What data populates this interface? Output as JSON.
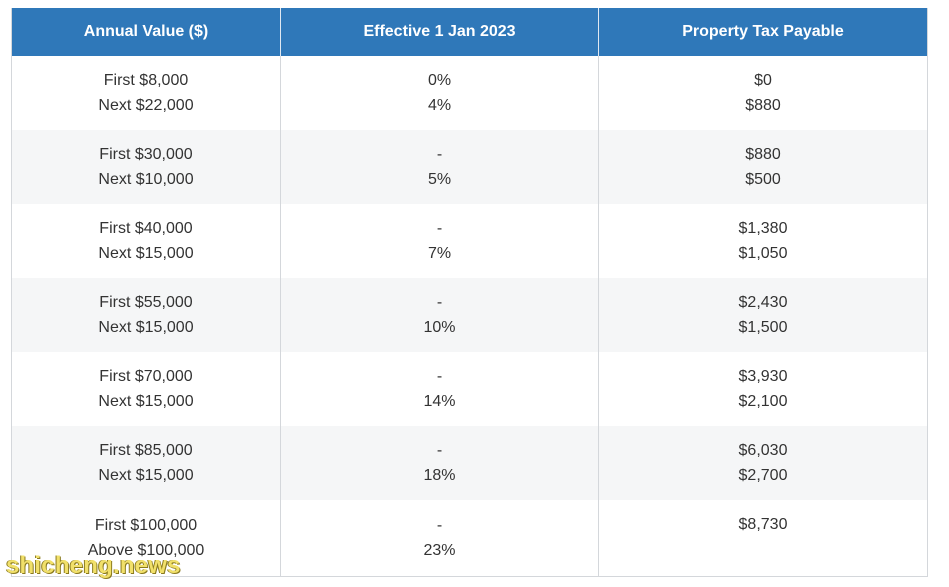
{
  "table": {
    "headers": [
      "Annual Value ($)",
      "Effective 1 Jan 2023",
      "Property Tax Payable"
    ],
    "rows": [
      {
        "av": [
          "First $8,000",
          "Next $22,000"
        ],
        "rate": [
          "0%",
          "4%"
        ],
        "tax": [
          "$0",
          "$880"
        ]
      },
      {
        "av": [
          "First $30,000",
          "Next $10,000"
        ],
        "rate": [
          "-",
          "5%"
        ],
        "tax": [
          "$880",
          "$500"
        ]
      },
      {
        "av": [
          "First $40,000",
          "Next $15,000"
        ],
        "rate": [
          "-",
          "7%"
        ],
        "tax": [
          "$1,380",
          "$1,050"
        ]
      },
      {
        "av": [
          "First $55,000",
          "Next $15,000"
        ],
        "rate": [
          "-",
          "10%"
        ],
        "tax": [
          "$2,430",
          "$1,500"
        ]
      },
      {
        "av": [
          "First $70,000",
          "Next $15,000"
        ],
        "rate": [
          "-",
          "14%"
        ],
        "tax": [
          "$3,930",
          "$2,100"
        ]
      },
      {
        "av": [
          "First $85,000",
          "Next $15,000"
        ],
        "rate": [
          "-",
          "18%"
        ],
        "tax": [
          "$6,030",
          "$2,700"
        ]
      },
      {
        "av": [
          "First $100,000",
          "Above $100,000"
        ],
        "rate": [
          "-",
          "23%"
        ],
        "tax": [
          "$8,730"
        ]
      }
    ]
  },
  "watermark": "shicheng.news"
}
